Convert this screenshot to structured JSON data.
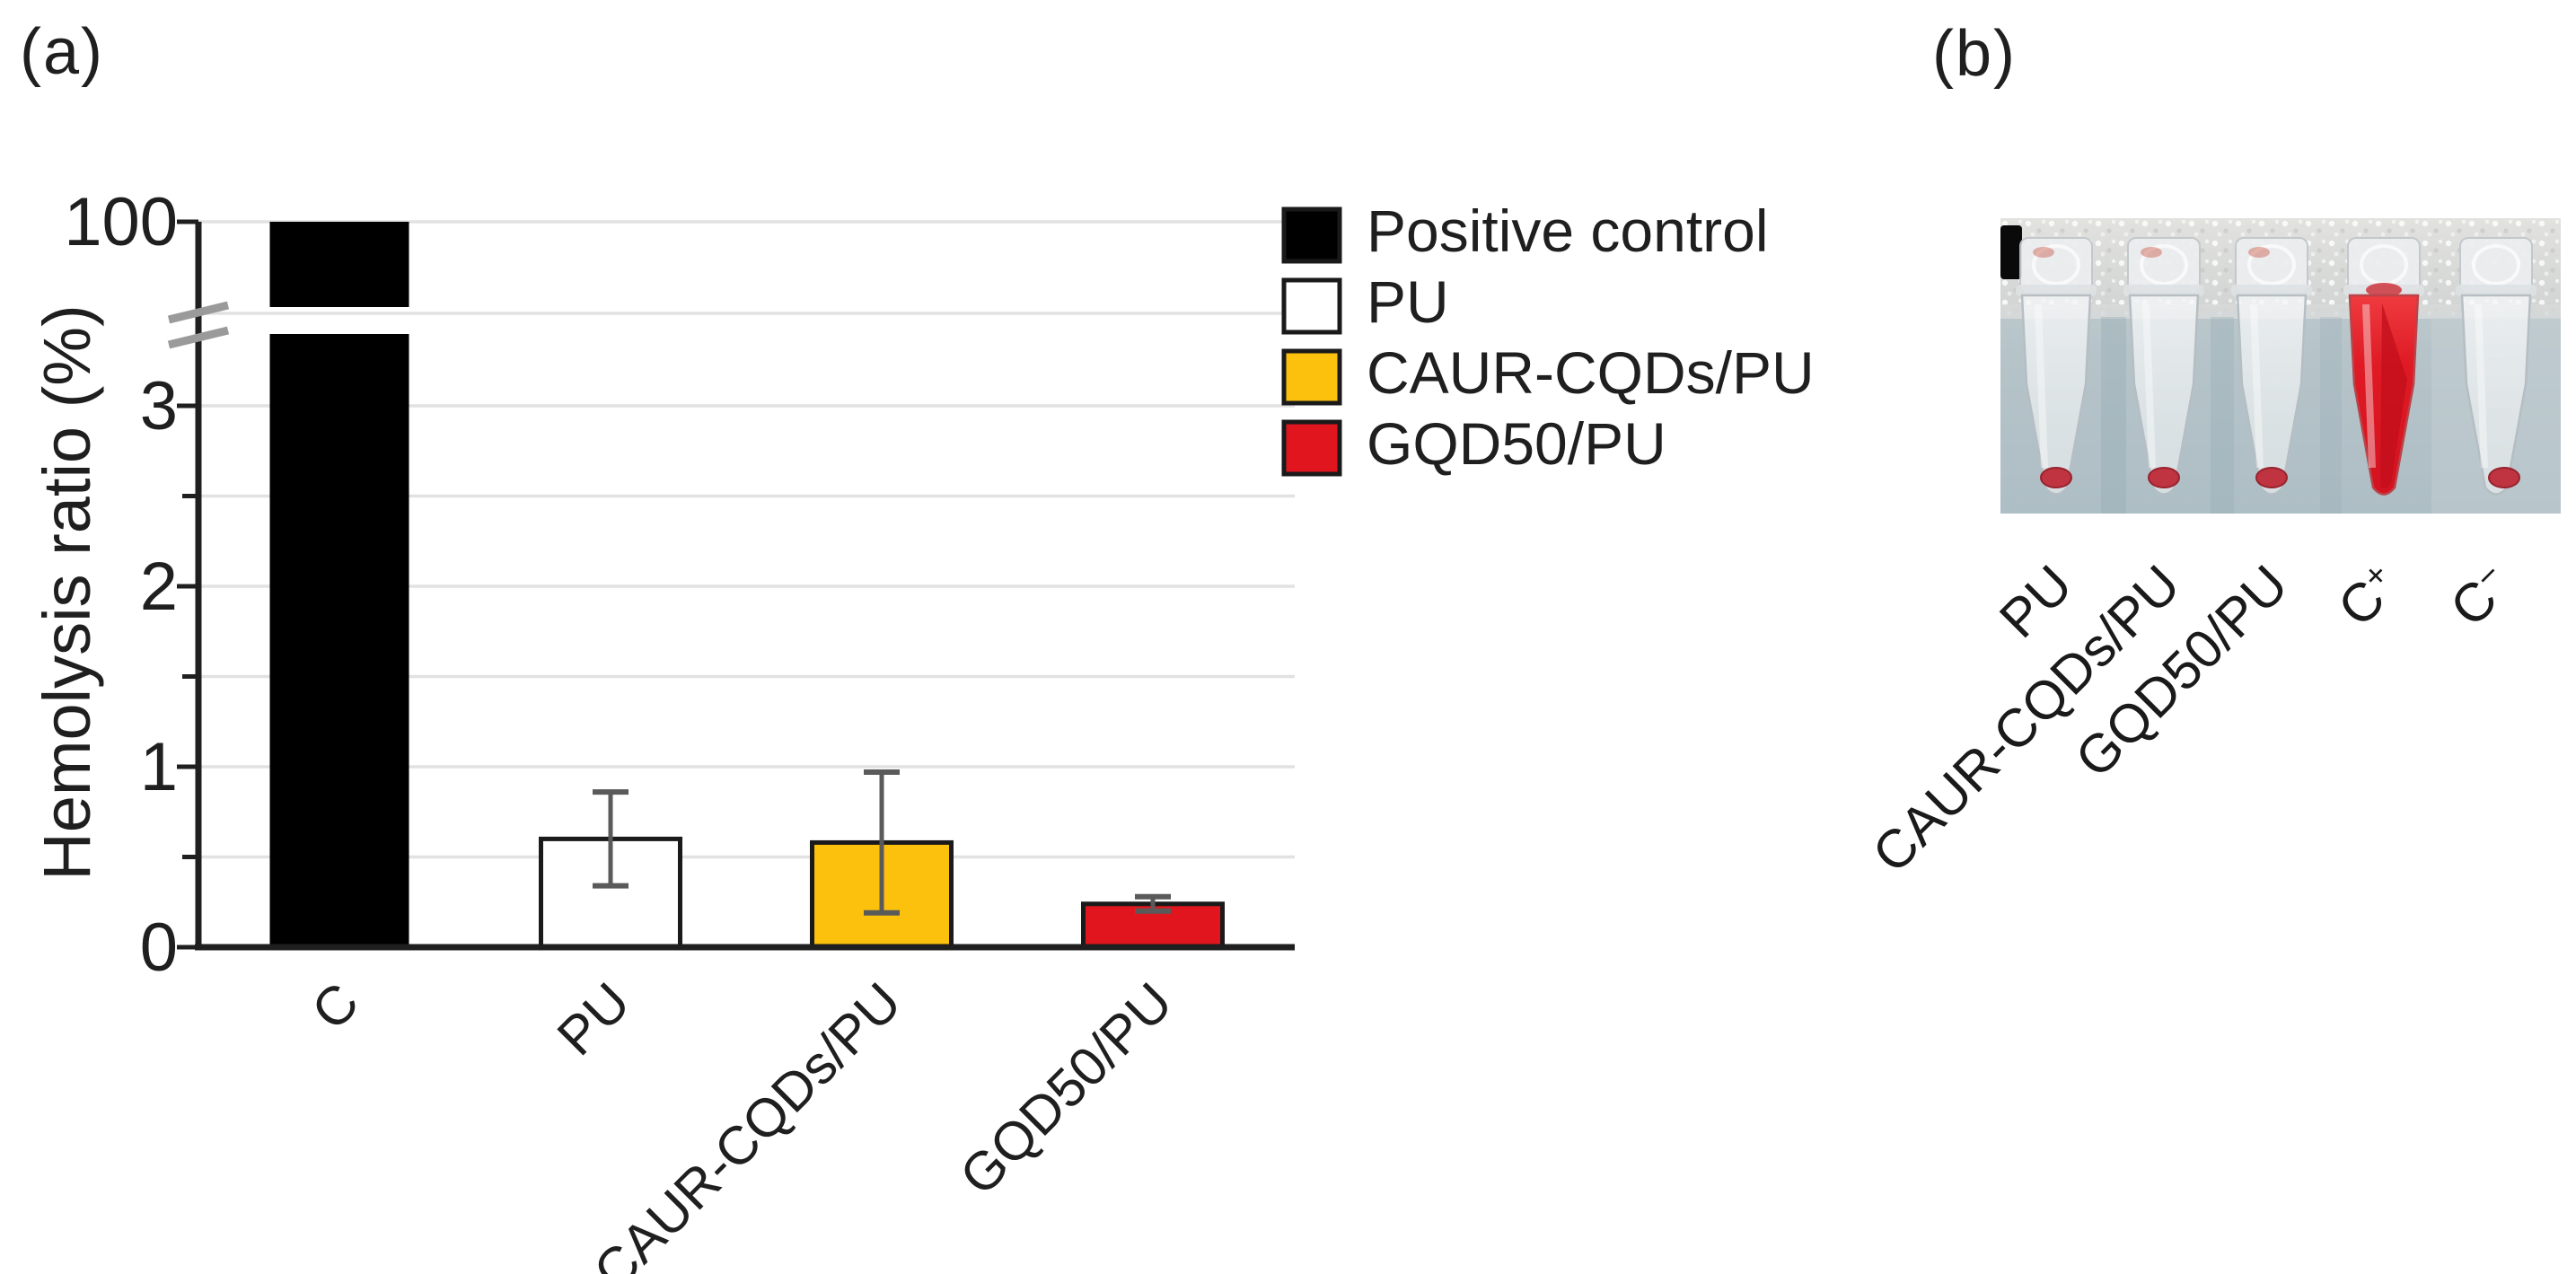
{
  "panel_a": {
    "label": "(a)"
  },
  "panel_b": {
    "label": "(b)",
    "tube_labels": [
      "PU",
      "CAUR-CQDs/PU",
      "GQD50/PU",
      "C+",
      "C−"
    ],
    "tubes": [
      {
        "name": "PU",
        "content": "clear-with-pellet"
      },
      {
        "name": "CAUR-CQDs/PU",
        "content": "clear-with-pellet"
      },
      {
        "name": "GQD50/PU",
        "content": "clear-with-pellet"
      },
      {
        "name": "C+",
        "content": "red-liquid"
      },
      {
        "name": "C−",
        "content": "clear-with-pellet"
      }
    ],
    "photo_colors": {
      "background_top": "#d9d9d6",
      "background_bottom": "#b2c1c7",
      "red_liquid": "#dd1420",
      "pellet": "#bf3440"
    }
  },
  "chart_data": {
    "type": "bar",
    "title": "",
    "xlabel": "",
    "ylabel": "Hemolysis ratio (%)",
    "categories": [
      "C",
      "PU",
      "CAUR-CQDs/PU",
      "GQD50/PU"
    ],
    "series": [
      {
        "name": "Hemolysis ratio (%)",
        "values": [
          100,
          0.6,
          0.58,
          0.24
        ],
        "errors": [
          0,
          0.26,
          0.39,
          0.04
        ]
      }
    ],
    "bar_colors": [
      "#000000",
      "#ffffff",
      "#fcc10d",
      "#e0151e"
    ],
    "axis_break": {
      "enabled": true,
      "lower_range": [
        0,
        3.4
      ],
      "upper_tick": 100
    },
    "yticks_major": [
      0,
      1,
      2,
      3,
      100
    ],
    "yticks_minor": [
      0.5,
      1.5,
      2.5
    ],
    "grid": true,
    "legend_position": "upper-right",
    "legend": [
      {
        "label": "Positive control",
        "color": "#000000"
      },
      {
        "label": "PU",
        "color": "#ffffff"
      },
      {
        "label": "CAUR-CQDs/PU",
        "color": "#fcc10d"
      },
      {
        "label": "GQD50/PU",
        "color": "#e0151e"
      }
    ],
    "error_bar_color": "#5a5a5a"
  }
}
